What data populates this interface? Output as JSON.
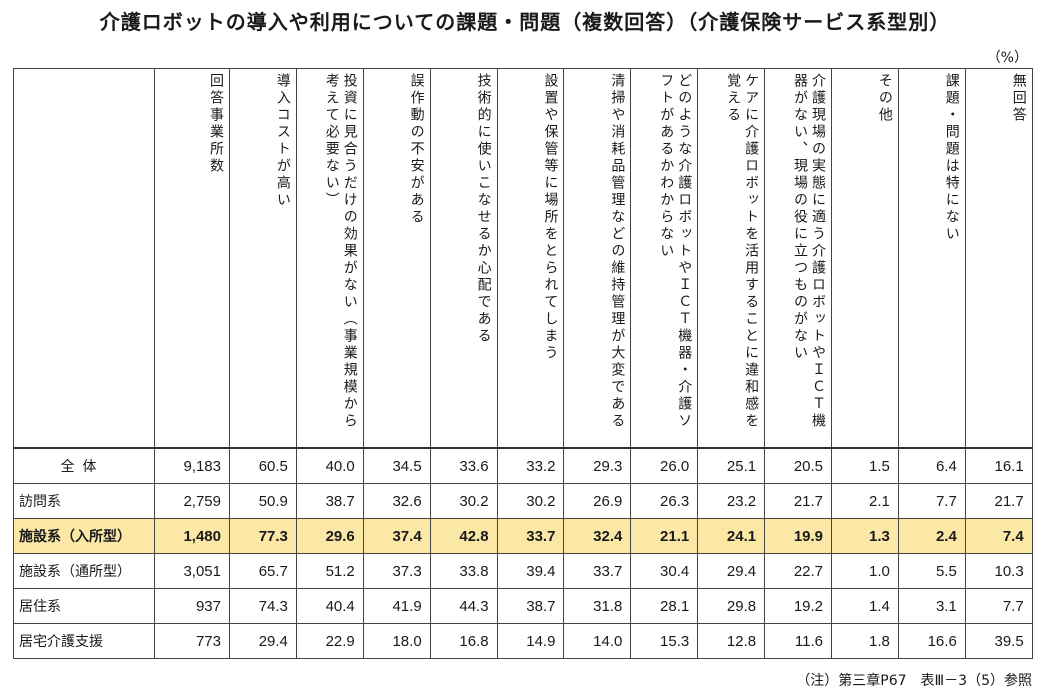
{
  "title": "介護ロボットの導入や利用についての課題・問題（複数回答）（介護保険サービス系型別）",
  "unit": "（%）",
  "note": "（注）第三章P67　表Ⅲ－3（5）参照",
  "columns": [
    "回答事業所数",
    "導入コストが高い",
    "投資に見合うだけの効果がない（事業規模から考えて必要ない）",
    "誤作動の不安がある",
    "技術的に使いこなせるか心配である",
    "設置や保管等に場所をとられてしまう",
    "清掃や消耗品管理などの維持管理が大変である",
    "どのような介護ロボットやＩＣＴ機器・介護ソフトがあるかわからない",
    "ケアに介護ロボットを活用することに違和感を覚える",
    "介護現場の実態に適う介護ロボットやＩＣＴ機器がない、現場の役に立つものがない",
    "その他",
    "課題・問題は特にない",
    "無回答"
  ],
  "rows": [
    {
      "label": "全体",
      "values": [
        "9,183",
        "60.5",
        "40.0",
        "34.5",
        "33.6",
        "33.2",
        "29.3",
        "26.0",
        "25.1",
        "20.5",
        "1.5",
        "6.4",
        "16.1"
      ]
    },
    {
      "label": "訪問系",
      "values": [
        "2,759",
        "50.9",
        "38.7",
        "32.6",
        "30.2",
        "30.2",
        "26.9",
        "26.3",
        "23.2",
        "21.7",
        "2.1",
        "7.7",
        "21.7"
      ]
    },
    {
      "label": "施設系（入所型）",
      "values": [
        "1,480",
        "77.3",
        "29.6",
        "37.4",
        "42.8",
        "33.7",
        "32.4",
        "21.1",
        "24.1",
        "19.9",
        "1.3",
        "2.4",
        "7.4"
      ]
    },
    {
      "label": "施設系（通所型）",
      "values": [
        "3,051",
        "65.7",
        "51.2",
        "37.3",
        "33.8",
        "39.4",
        "33.7",
        "30.4",
        "29.4",
        "22.7",
        "1.0",
        "5.5",
        "10.3"
      ]
    },
    {
      "label": "居住系",
      "values": [
        "937",
        "74.3",
        "40.4",
        "41.9",
        "44.3",
        "38.7",
        "31.8",
        "28.1",
        "29.8",
        "19.2",
        "1.4",
        "3.1",
        "7.7"
      ]
    },
    {
      "label": "居宅介護支援",
      "values": [
        "773",
        "29.4",
        "22.9",
        "18.0",
        "16.8",
        "14.9",
        "14.0",
        "15.3",
        "12.8",
        "11.6",
        "1.8",
        "16.6",
        "39.5"
      ]
    }
  ],
  "highlight_row_color": "#fbe8a6"
}
